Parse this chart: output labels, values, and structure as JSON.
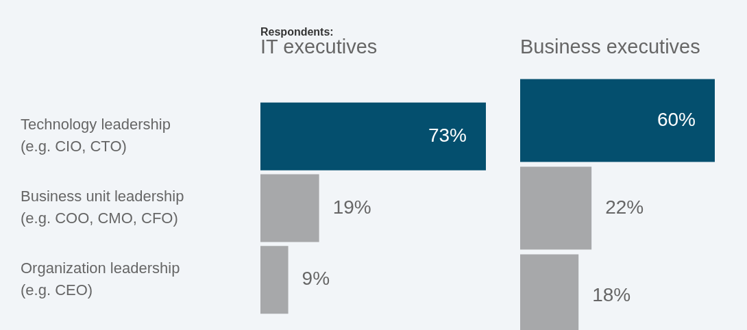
{
  "chart_data": [
    {
      "type": "bar",
      "orientation": "horizontal",
      "title": "IT executives",
      "annotations": [
        "Respondents:"
      ],
      "categories": [
        "Technology leadership\n(e.g. CIO, CTO)",
        "Business unit leadership\n(e.g. COO, CMO, CFO)",
        "Organization leadership\n(e.g. CEO)"
      ],
      "values": [
        73,
        19,
        9
      ],
      "value_labels": [
        "73%",
        "19%",
        "9%"
      ],
      "colors": [
        "#044f6e",
        "#a7a8aa",
        "#a7a8aa"
      ]
    },
    {
      "type": "bar",
      "orientation": "horizontal",
      "title": "Business executives",
      "categories": [
        null,
        null,
        null
      ],
      "values": [
        60,
        22,
        18
      ],
      "value_labels": [
        "60%",
        "22%",
        "18%"
      ],
      "colors": [
        "#044f6e",
        "#a7a8aa",
        "#a7a8aa"
      ],
      "tick_labels": false
    }
  ]
}
